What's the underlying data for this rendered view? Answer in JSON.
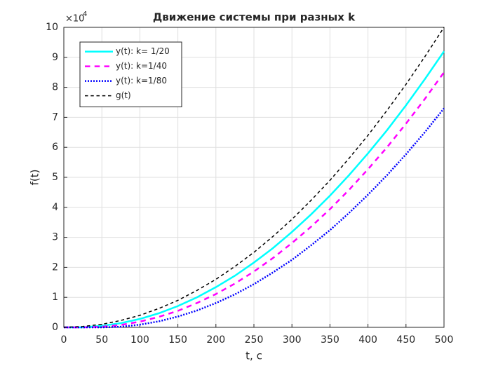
{
  "chart_data": {
    "type": "line",
    "title": "Движение системы при разных k",
    "xlabel": "t, c",
    "ylabel": "f(t)",
    "y_multiplier": "×10",
    "y_multiplier_exp": "4",
    "x": [
      0,
      25,
      50,
      75,
      100,
      125,
      150,
      175,
      200,
      225,
      250,
      275,
      300,
      325,
      350,
      375,
      400,
      425,
      450,
      475,
      500
    ],
    "series": [
      {
        "name": "y(t): k= 1/20",
        "color": "#00ffff",
        "dash": "solid",
        "width": 2.5,
        "values": [
          0,
          0,
          0.05,
          0.14,
          0.28,
          0.47,
          0.71,
          1.0,
          1.34,
          1.72,
          2.16,
          2.64,
          3.18,
          3.76,
          4.39,
          5.07,
          5.8,
          6.57,
          7.4,
          8.28,
          9.2
        ]
      },
      {
        "name": "y(t): k=1/40",
        "color": "#ff00ff",
        "dash": "dashed",
        "width": 2.5,
        "values": [
          0,
          0,
          0.02,
          0.08,
          0.19,
          0.35,
          0.55,
          0.81,
          1.11,
          1.46,
          1.86,
          2.31,
          2.81,
          3.35,
          3.94,
          4.58,
          5.27,
          6.0,
          6.79,
          7.62,
          8.5
        ]
      },
      {
        "name": "y(t): k=1/80",
        "color": "#0000ff",
        "dash": "dotted",
        "width": 2.5,
        "values": [
          0,
          0,
          0,
          0.02,
          0.09,
          0.2,
          0.36,
          0.56,
          0.81,
          1.1,
          1.44,
          1.83,
          2.25,
          2.73,
          3.24,
          3.81,
          4.42,
          5.07,
          5.77,
          6.51,
          7.3
        ]
      },
      {
        "name": "g(t)",
        "color": "#000000",
        "dash": "dashed",
        "width": 1.5,
        "values": [
          0,
          0.03,
          0.1,
          0.23,
          0.4,
          0.63,
          0.9,
          1.23,
          1.6,
          2.03,
          2.5,
          3.03,
          3.6,
          4.23,
          4.9,
          5.63,
          6.4,
          7.23,
          8.1,
          9.03,
          10
        ]
      }
    ],
    "xlim": [
      0,
      500
    ],
    "xticks": [
      0,
      50,
      100,
      150,
      200,
      250,
      300,
      350,
      400,
      450,
      500
    ],
    "ylim": [
      0,
      10
    ],
    "yticks": [
      0,
      1,
      2,
      3,
      4,
      5,
      6,
      7,
      8,
      9,
      10
    ],
    "grid": true,
    "legend": "upper left"
  }
}
